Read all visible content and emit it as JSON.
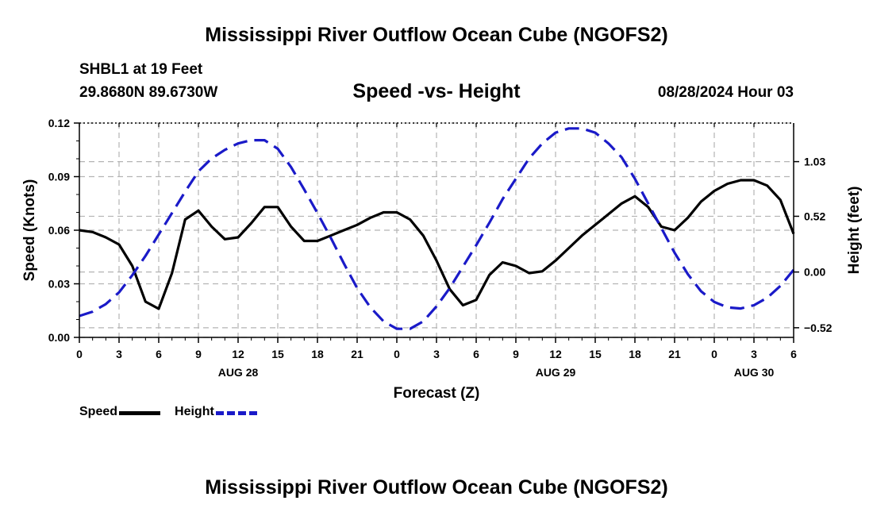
{
  "header": {
    "title": "Mississippi River Outflow Ocean Cube (NGOFS2)",
    "station": "SHBL1 at 19 Feet",
    "coords": "29.8680N  89.6730W",
    "subtitle": "Speed -vs- Height",
    "datetime": "08/28/2024 Hour 03"
  },
  "footer": {
    "title": "Mississippi River Outflow Ocean Cube (NGOFS2)"
  },
  "legend": {
    "speed_label": "Speed",
    "height_label": "Height"
  },
  "colors": {
    "speed": "#000000",
    "height": "#1a1ac8",
    "grid": "#b4b4b4"
  },
  "chart_data": {
    "type": "line",
    "title": "Speed -vs- Height",
    "xlabel": "Forecast (Z)",
    "ylabel": "Speed (Knots)",
    "y2label": "Height (feet)",
    "xlim": [
      0,
      54
    ],
    "ylim": [
      0,
      0.12
    ],
    "y2lim": [
      -0.61,
      1.39
    ],
    "x_ticks": [
      0,
      3,
      6,
      9,
      12,
      15,
      18,
      21,
      24,
      27,
      30,
      33,
      36,
      39,
      42,
      45,
      48,
      51,
      54
    ],
    "x_tick_labels": [
      "0",
      "3",
      "6",
      "9",
      "12",
      "15",
      "18",
      "21",
      "0",
      "3",
      "6",
      "9",
      "12",
      "15",
      "18",
      "21",
      "0",
      "3",
      "6"
    ],
    "day_labels": [
      {
        "x": 12,
        "label": "AUG 28"
      },
      {
        "x": 36,
        "label": "AUG 29"
      },
      {
        "x": 51,
        "label": "AUG 30"
      }
    ],
    "y_ticks": [
      0.0,
      0.03,
      0.06,
      0.09,
      0.12
    ],
    "y_tick_labels": [
      "0.00",
      "0.03",
      "0.06",
      "0.09",
      "0.12"
    ],
    "y2_ticks": [
      -0.52,
      0.0,
      0.52,
      1.03
    ],
    "y2_tick_labels": [
      "−0.52",
      "0.00",
      "0.52",
      "1.03"
    ],
    "grid": true,
    "series": [
      {
        "name": "Speed",
        "axis": "left",
        "style": "solid",
        "x": [
          0,
          1,
          2,
          3,
          4,
          5,
          6,
          7,
          8,
          9,
          10,
          11,
          12,
          13,
          14,
          15,
          16,
          17,
          18,
          19,
          20,
          21,
          22,
          23,
          24,
          25,
          26,
          27,
          28,
          29,
          30,
          31,
          32,
          33,
          34,
          35,
          36,
          37,
          38,
          39,
          40,
          41,
          42,
          43,
          44,
          45,
          46,
          47,
          48,
          49,
          50,
          51,
          52,
          53,
          54
        ],
        "values": [
          0.06,
          0.059,
          0.056,
          0.052,
          0.04,
          0.02,
          0.016,
          0.036,
          0.066,
          0.071,
          0.062,
          0.055,
          0.056,
          0.064,
          0.073,
          0.073,
          0.062,
          0.054,
          0.054,
          0.057,
          0.06,
          0.063,
          0.067,
          0.07,
          0.07,
          0.066,
          0.057,
          0.043,
          0.027,
          0.018,
          0.021,
          0.035,
          0.042,
          0.04,
          0.036,
          0.037,
          0.043,
          0.05,
          0.057,
          0.063,
          0.069,
          0.075,
          0.079,
          0.073,
          0.062,
          0.06,
          0.067,
          0.076,
          0.082,
          0.086,
          0.088,
          0.088,
          0.085,
          0.077,
          0.058
        ]
      },
      {
        "name": "Height",
        "axis": "right",
        "style": "dashed",
        "x": [
          0,
          1,
          2,
          3,
          4,
          5,
          6,
          7,
          8,
          9,
          10,
          11,
          12,
          13,
          14,
          15,
          16,
          17,
          18,
          19,
          20,
          21,
          22,
          23,
          24,
          25,
          26,
          27,
          28,
          29,
          30,
          31,
          32,
          33,
          34,
          35,
          36,
          37,
          38,
          39,
          40,
          41,
          42,
          43,
          44,
          45,
          46,
          47,
          48,
          49,
          50,
          51,
          52,
          53,
          54
        ],
        "values": [
          -0.41,
          -0.37,
          -0.3,
          -0.19,
          -0.03,
          0.15,
          0.35,
          0.55,
          0.75,
          0.94,
          1.06,
          1.14,
          1.2,
          1.23,
          1.23,
          1.15,
          0.98,
          0.77,
          0.55,
          0.32,
          0.08,
          -0.15,
          -0.33,
          -0.46,
          -0.53,
          -0.53,
          -0.46,
          -0.32,
          -0.15,
          0.05,
          0.25,
          0.46,
          0.68,
          0.87,
          1.06,
          1.2,
          1.3,
          1.34,
          1.34,
          1.3,
          1.2,
          1.07,
          0.87,
          0.64,
          0.41,
          0.18,
          -0.02,
          -0.18,
          -0.28,
          -0.33,
          -0.34,
          -0.31,
          -0.24,
          -0.13,
          0.02
        ]
      }
    ]
  }
}
